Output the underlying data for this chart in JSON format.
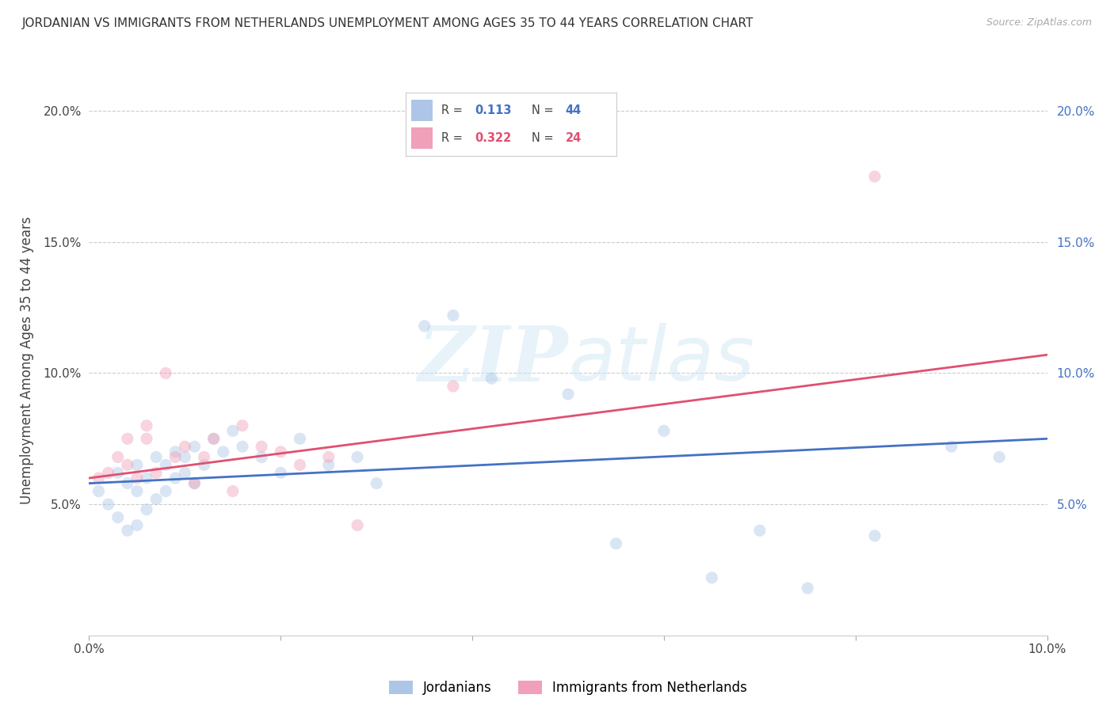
{
  "title": "JORDANIAN VS IMMIGRANTS FROM NETHERLANDS UNEMPLOYMENT AMONG AGES 35 TO 44 YEARS CORRELATION CHART",
  "source": "Source: ZipAtlas.com",
  "ylabel": "Unemployment Among Ages 35 to 44 years",
  "xmin": 0.0,
  "xmax": 0.1,
  "ymin": 0.0,
  "ymax": 0.21,
  "xticks": [
    0.0,
    0.02,
    0.04,
    0.06,
    0.08,
    0.1
  ],
  "xtick_labels": [
    "0.0%",
    "",
    "",
    "",
    "",
    "10.0%"
  ],
  "yticks_left": [
    0.0,
    0.05,
    0.1,
    0.15,
    0.2
  ],
  "ytick_labels_left": [
    "",
    "5.0%",
    "10.0%",
    "15.0%",
    "20.0%"
  ],
  "yticks_right": [
    0.05,
    0.1,
    0.15,
    0.2
  ],
  "ytick_labels_right": [
    "5.0%",
    "10.0%",
    "15.0%",
    "20.0%"
  ],
  "jordanians_x": [
    0.001,
    0.002,
    0.003,
    0.003,
    0.004,
    0.004,
    0.005,
    0.005,
    0.005,
    0.006,
    0.006,
    0.007,
    0.007,
    0.008,
    0.008,
    0.009,
    0.009,
    0.01,
    0.01,
    0.011,
    0.011,
    0.012,
    0.013,
    0.014,
    0.015,
    0.016,
    0.018,
    0.02,
    0.022,
    0.025,
    0.028,
    0.03,
    0.035,
    0.038,
    0.042,
    0.05,
    0.055,
    0.06,
    0.065,
    0.07,
    0.075,
    0.082,
    0.09,
    0.095
  ],
  "jordanians_y": [
    0.055,
    0.05,
    0.045,
    0.062,
    0.04,
    0.058,
    0.042,
    0.055,
    0.065,
    0.048,
    0.06,
    0.052,
    0.068,
    0.055,
    0.065,
    0.06,
    0.07,
    0.062,
    0.068,
    0.058,
    0.072,
    0.065,
    0.075,
    0.07,
    0.078,
    0.072,
    0.068,
    0.062,
    0.075,
    0.065,
    0.068,
    0.058,
    0.118,
    0.122,
    0.098,
    0.092,
    0.035,
    0.078,
    0.022,
    0.04,
    0.018,
    0.038,
    0.072,
    0.068
  ],
  "immigrants_x": [
    0.001,
    0.002,
    0.003,
    0.004,
    0.004,
    0.005,
    0.006,
    0.006,
    0.007,
    0.008,
    0.009,
    0.01,
    0.011,
    0.012,
    0.013,
    0.015,
    0.016,
    0.018,
    0.02,
    0.022,
    0.025,
    0.028,
    0.038,
    0.082
  ],
  "immigrants_y": [
    0.06,
    0.062,
    0.068,
    0.065,
    0.075,
    0.06,
    0.075,
    0.08,
    0.062,
    0.1,
    0.068,
    0.072,
    0.058,
    0.068,
    0.075,
    0.055,
    0.08,
    0.072,
    0.07,
    0.065,
    0.068,
    0.042,
    0.095,
    0.175
  ],
  "blue_line_x": [
    0.0,
    0.1
  ],
  "blue_line_y": [
    0.058,
    0.075
  ],
  "pink_line_x": [
    0.0,
    0.1
  ],
  "pink_line_y": [
    0.06,
    0.107
  ],
  "watermark_line1": "ZIP",
  "watermark_line2": "atlas",
  "dot_size": 120,
  "dot_alpha": 0.45,
  "blue_dot_color": "#adc6e8",
  "pink_dot_color": "#f0a0b8",
  "blue_line_color": "#4472c4",
  "pink_line_color": "#e05070",
  "grid_color": "#cccccc",
  "background_color": "#ffffff",
  "title_fontsize": 11,
  "tick_fontsize": 11,
  "ylabel_fontsize": 12
}
